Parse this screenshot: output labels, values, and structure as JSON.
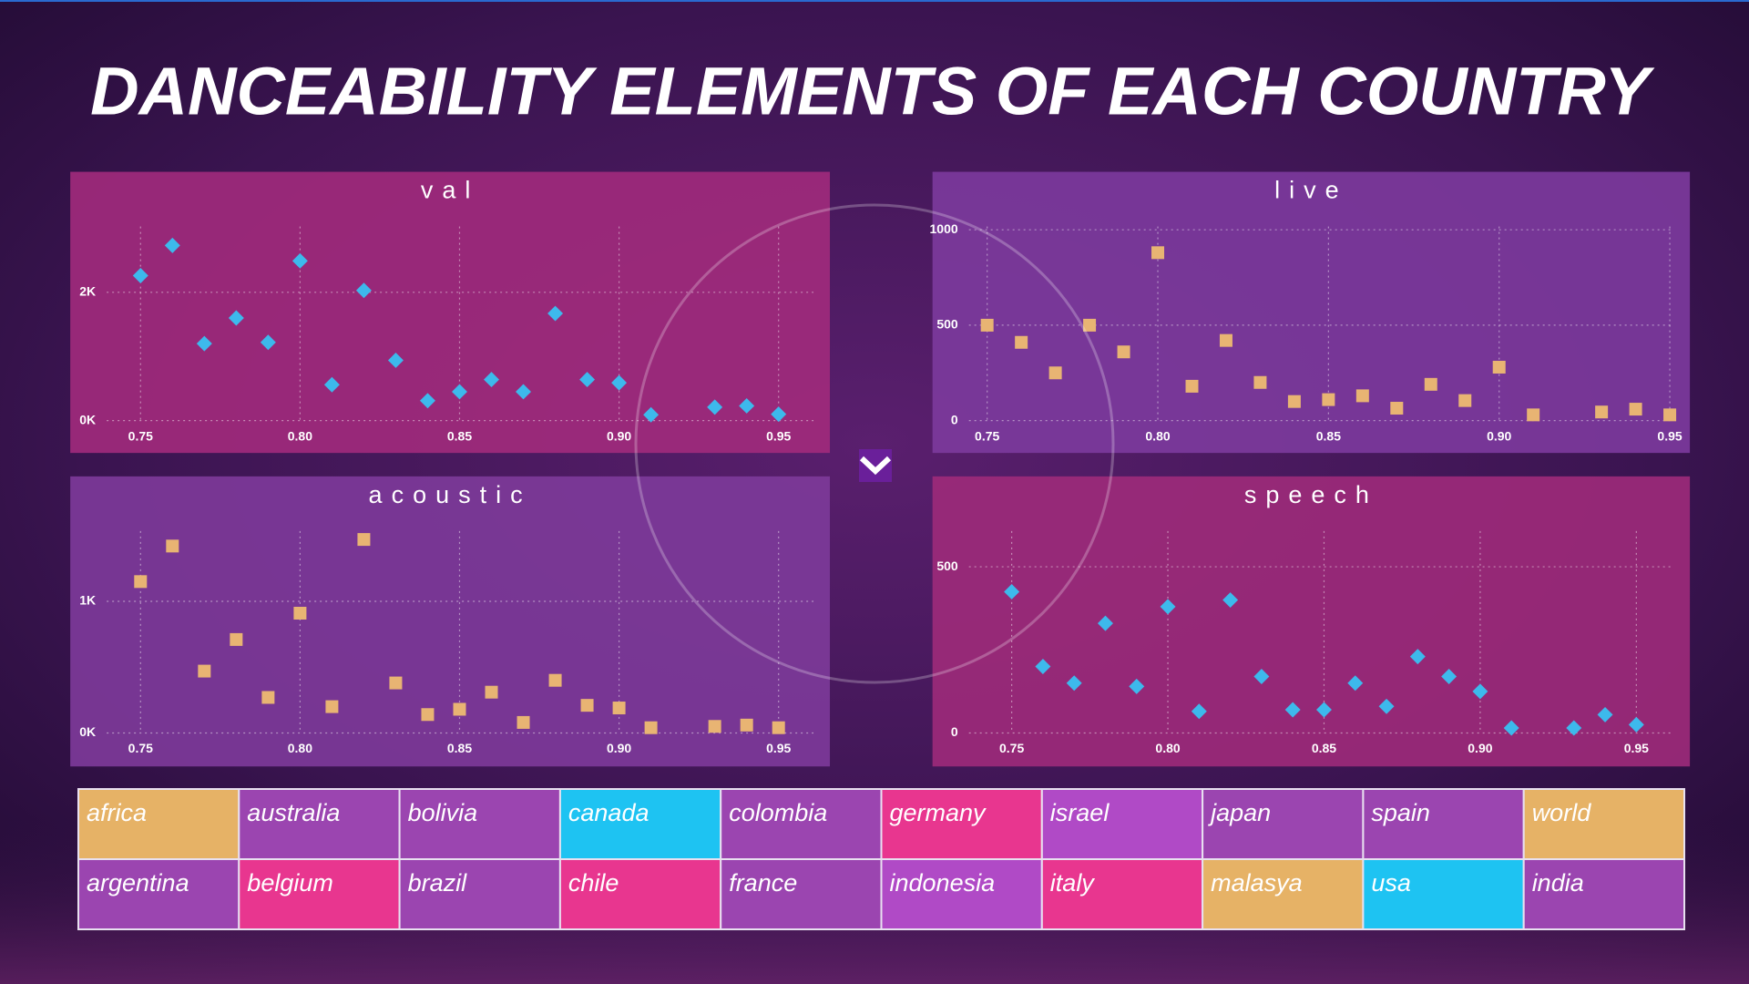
{
  "title": "DANCEABILITY ELEMENTS OF EACH COUNTRY",
  "chart_data": [
    {
      "type": "scatter",
      "title": "val",
      "marker": "diamond",
      "color": "#3db9ec",
      "grid": true,
      "x": [
        0.75,
        0.76,
        0.77,
        0.78,
        0.79,
        0.8,
        0.81,
        0.82,
        0.83,
        0.84,
        0.85,
        0.86,
        0.87,
        0.88,
        0.89,
        0.9,
        0.91,
        0.93,
        0.94,
        0.95
      ],
      "values": [
        2260,
        2730,
        1200,
        1600,
        1220,
        2490,
        560,
        2030,
        940,
        310,
        450,
        640,
        450,
        1670,
        640,
        590,
        90,
        210,
        230,
        100
      ],
      "xlim": [
        0.74,
        0.96
      ],
      "ylim": [
        0,
        3000
      ],
      "xticks": [
        0.75,
        {
          "value": 0.8,
          "label": "0.80"
        },
        0.85,
        {
          "value": 0.9,
          "label": "0.90"
        },
        0.95
      ],
      "yticks": [
        {
          "value": 0,
          "label": "0K"
        },
        {
          "value": 2000,
          "label": "2K"
        }
      ]
    },
    {
      "type": "scatter",
      "title": "live",
      "marker": "square",
      "color": "#e8b473",
      "grid": true,
      "x": [
        0.75,
        0.76,
        0.77,
        0.78,
        0.79,
        0.8,
        0.81,
        0.82,
        0.83,
        0.84,
        0.85,
        0.86,
        0.87,
        0.88,
        0.89,
        0.9,
        0.91,
        0.93,
        0.94,
        0.95
      ],
      "values": [
        500,
        410,
        250,
        500,
        360,
        880,
        180,
        420,
        200,
        100,
        110,
        130,
        65,
        190,
        105,
        280,
        30,
        45,
        60,
        30
      ],
      "xlim": [
        0.75,
        0.95
      ],
      "ylim": [
        0,
        1050
      ],
      "xticks": [
        0.75,
        {
          "value": 0.8,
          "label": "0.80"
        },
        0.85,
        {
          "value": 0.9,
          "label": "0.90"
        },
        0.95
      ],
      "yticks": [
        0,
        500,
        1000
      ]
    },
    {
      "type": "scatter",
      "title": "acoustic",
      "marker": "square",
      "color": "#e8b473",
      "grid": true,
      "x": [
        0.75,
        0.76,
        0.77,
        0.78,
        0.79,
        0.8,
        0.81,
        0.82,
        0.83,
        0.84,
        0.85,
        0.86,
        0.87,
        0.88,
        0.89,
        0.9,
        0.91,
        0.93,
        0.94,
        0.95
      ],
      "values": [
        1150,
        1420,
        470,
        710,
        270,
        910,
        200,
        1470,
        380,
        140,
        180,
        310,
        80,
        400,
        210,
        190,
        40,
        50,
        60,
        40
      ],
      "xlim": [
        0.74,
        0.96
      ],
      "ylim": [
        0,
        1600
      ],
      "xticks": [
        0.75,
        {
          "value": 0.8,
          "label": "0.80"
        },
        0.85,
        {
          "value": 0.9,
          "label": "0.90"
        },
        0.95
      ],
      "yticks": [
        {
          "value": 0,
          "label": "0K"
        },
        {
          "value": 1000,
          "label": "1K"
        }
      ]
    },
    {
      "type": "scatter",
      "title": "speech",
      "marker": "diamond",
      "color": "#3db9ec",
      "grid": true,
      "x": [
        0.75,
        0.76,
        0.77,
        0.78,
        0.79,
        0.8,
        0.81,
        0.82,
        0.83,
        0.84,
        0.85,
        0.86,
        0.87,
        0.88,
        0.89,
        0.9,
        0.91,
        0.93,
        0.94,
        0.95
      ],
      "values": [
        425,
        200,
        150,
        330,
        140,
        380,
        65,
        400,
        170,
        70,
        70,
        150,
        80,
        230,
        170,
        125,
        15,
        15,
        55,
        25
      ],
      "xlim": [
        0.74,
        0.96
      ],
      "ylim": [
        0,
        630
      ],
      "xticks": [
        0.75,
        {
          "value": 0.8,
          "label": "0.80"
        },
        0.85,
        {
          "value": 0.9,
          "label": "0.90"
        },
        0.95
      ],
      "yticks": [
        0,
        500
      ]
    }
  ],
  "buttons": [
    {
      "label": "africa",
      "color": "#e6b266"
    },
    {
      "label": "australia",
      "color": "#9b45b0"
    },
    {
      "label": "bolivia",
      "color": "#9b45b0"
    },
    {
      "label": "canada",
      "color": "#1ec3f2"
    },
    {
      "label": "colombia",
      "color": "#9b45b0"
    },
    {
      "label": "germany",
      "color": "#e8368f"
    },
    {
      "label": "israel",
      "color": "#b04ac6"
    },
    {
      "label": "japan",
      "color": "#9b45b0"
    },
    {
      "label": "spain",
      "color": "#9b45b0"
    },
    {
      "label": "world",
      "color": "#e6b266"
    },
    {
      "label": "argentina",
      "color": "#9b45b0"
    },
    {
      "label": "belgium",
      "color": "#e8368f"
    },
    {
      "label": "brazil",
      "color": "#9b45b0"
    },
    {
      "label": "chile",
      "color": "#e8368f"
    },
    {
      "label": "france",
      "color": "#9b45b0"
    },
    {
      "label": "indonesia",
      "color": "#b04ac6"
    },
    {
      "label": "italy",
      "color": "#e8368f"
    },
    {
      "label": "malasya",
      "color": "#e6b266"
    },
    {
      "label": "usa",
      "color": "#1ec3f2"
    },
    {
      "label": "india",
      "color": "#9b45b0"
    }
  ]
}
